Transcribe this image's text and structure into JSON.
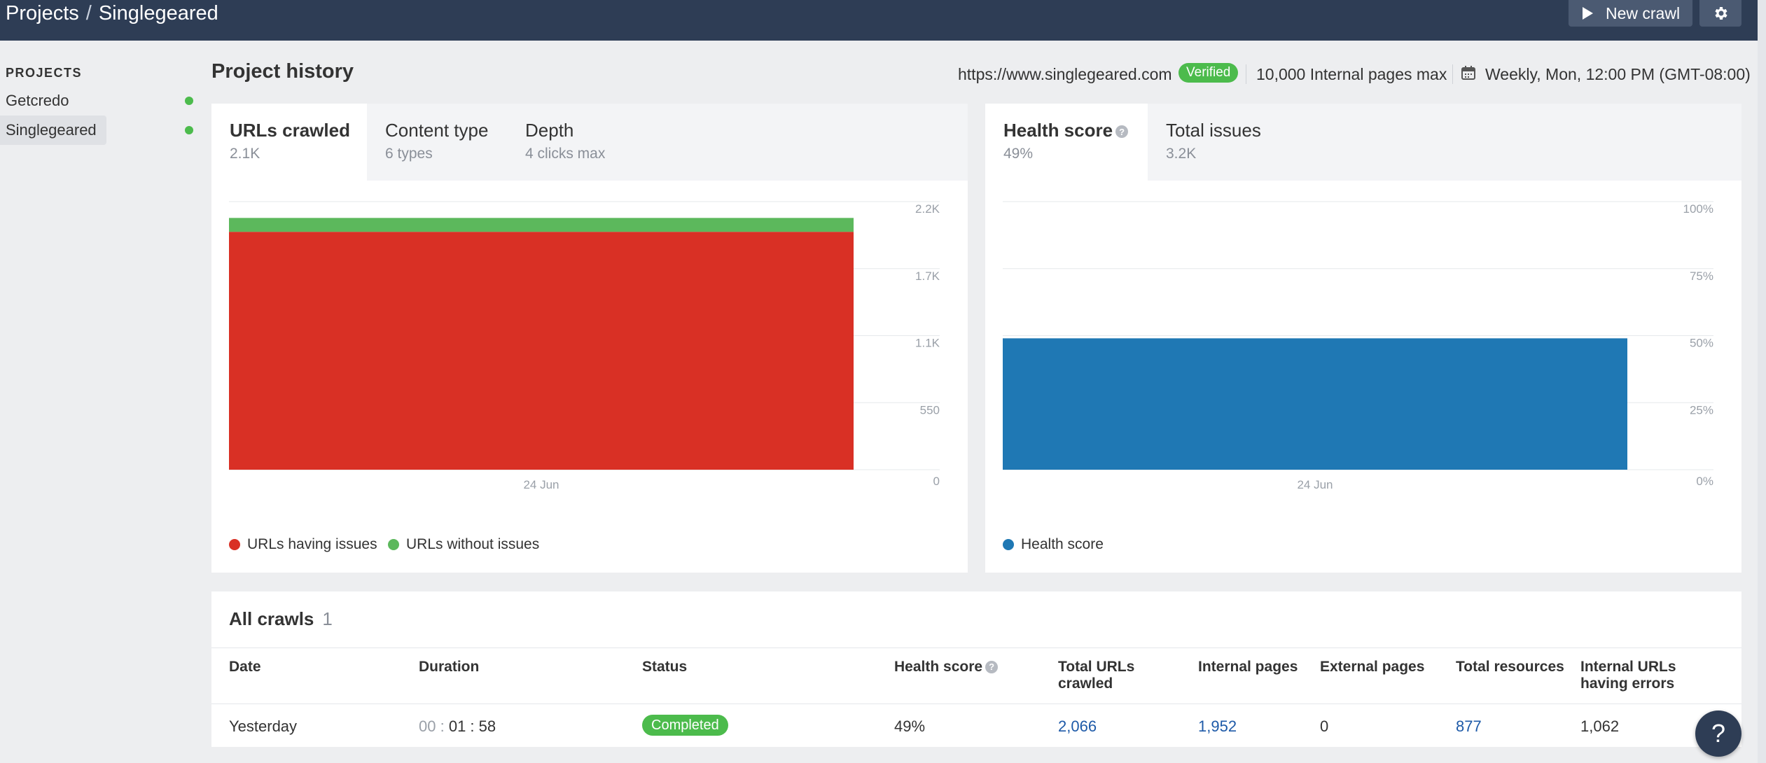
{
  "header": {
    "breadcrumb_root": "Projects",
    "breadcrumb_sep": "/",
    "breadcrumb_current": "Singlegeared",
    "new_crawl_label": "New crawl"
  },
  "sidebar": {
    "heading": "PROJECTS",
    "items": [
      {
        "label": "Getcredo",
        "status_color": "#4cbb4c"
      },
      {
        "label": "Singlegeared",
        "status_color": "#4cbb4c",
        "active": true
      }
    ]
  },
  "project": {
    "title": "Project history",
    "url": "https://www.singlegeared.com",
    "verified_label": "Verified",
    "pages_limit": "10,000 Internal pages max",
    "schedule": "Weekly, Mon, 12:00 PM (GMT-08:00)"
  },
  "crawl_card": {
    "tabs": [
      {
        "label": "URLs crawled",
        "sub": "2.1K"
      },
      {
        "label": "Content type",
        "sub": "6 types"
      },
      {
        "label": "Depth",
        "sub": "4 clicks max"
      }
    ],
    "legend": [
      {
        "label": "URLs having issues",
        "color": "#d93025"
      },
      {
        "label": "URLs without issues",
        "color": "#5cb85c"
      }
    ]
  },
  "health_card": {
    "tabs": [
      {
        "label": "Health score",
        "sub": "49%"
      },
      {
        "label": "Total issues",
        "sub": "3.2K"
      }
    ],
    "legend": [
      {
        "label": "Health score",
        "color": "#1f78b4"
      }
    ]
  },
  "chart_data": [
    {
      "type": "area",
      "categories": [
        "24 Jun"
      ],
      "series": [
        {
          "name": "URLs having issues",
          "values": [
            1952
          ],
          "color": "#d93025"
        },
        {
          "name": "URLs without issues",
          "values": [
            114
          ],
          "color": "#5cb85c"
        }
      ],
      "stacked": true,
      "ylim": [
        0,
        2200
      ],
      "yticks": [
        "0",
        "550",
        "1.1K",
        "1.7K",
        "2.2K"
      ],
      "grid": true,
      "legend": "bottom-left"
    },
    {
      "type": "area",
      "categories": [
        "24 Jun"
      ],
      "series": [
        {
          "name": "Health score",
          "values": [
            49
          ],
          "color": "#1f78b4"
        }
      ],
      "ylim": [
        0,
        100
      ],
      "yticks": [
        "0%",
        "25%",
        "50%",
        "75%",
        "100%"
      ],
      "grid": true,
      "legend": "bottom-left"
    }
  ],
  "crawls": {
    "title": "All crawls",
    "count": "1",
    "columns": [
      "Date",
      "Duration",
      "Status",
      "Health score",
      "Total URLs crawled",
      "Internal pages",
      "External pages",
      "Total resources",
      "Internal URLs having errors"
    ],
    "rows": [
      {
        "date": "Yesterday",
        "duration_dim": "00",
        "duration_sep1": " : ",
        "duration_main": "01 : 58",
        "status": "Completed",
        "health": "49%",
        "total_urls": "2,066",
        "internal_pages": "1,952",
        "external_pages": "0",
        "total_resources": "877",
        "internal_errors": "1,062"
      }
    ]
  },
  "help_label": "?"
}
